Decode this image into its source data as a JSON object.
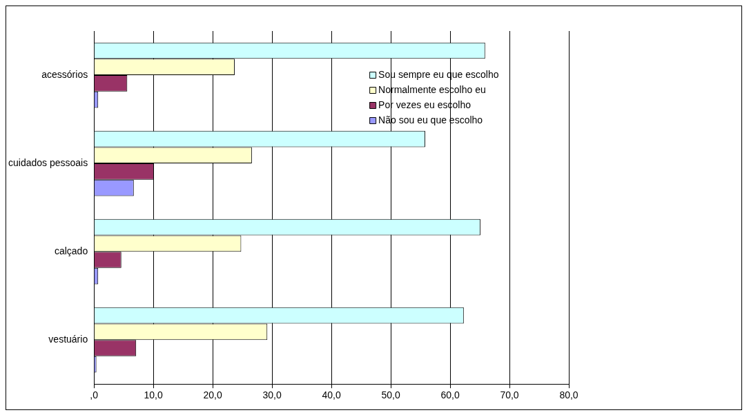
{
  "chart_data": {
    "type": "bar",
    "orientation": "horizontal",
    "categories": [
      "acessórios",
      "cuidados pessoais",
      "calçado",
      "vestuário"
    ],
    "series": [
      {
        "name": "Sou sempre eu que escolho",
        "color": "#ccffff",
        "values": [
          65.9,
          55.8,
          65.1,
          62.3
        ]
      },
      {
        "name": "Normalmente escolho eu",
        "color": "#ffffcc",
        "values": [
          23.7,
          26.6,
          24.8,
          29.2
        ]
      },
      {
        "name": "Por vezes eu escolho",
        "color": "#993366",
        "values": [
          5.6,
          10.1,
          4.6,
          7.1
        ]
      },
      {
        "name": "Não sou eu que escolho",
        "color": "#9999ff",
        "values": [
          0.7,
          6.7,
          0.7,
          0.4
        ]
      }
    ],
    "xlim": [
      0,
      80
    ],
    "xticks": [
      {
        "value": 0,
        "label": ",0"
      },
      {
        "value": 10,
        "label": "10,0"
      },
      {
        "value": 20,
        "label": "20,0"
      },
      {
        "value": 30,
        "label": "30,0"
      },
      {
        "value": 40,
        "label": "40,0"
      },
      {
        "value": 50,
        "label": "50,0"
      },
      {
        "value": 60,
        "label": "60,0"
      },
      {
        "value": 70,
        "label": "70,0"
      },
      {
        "value": 80,
        "label": "80,0"
      }
    ],
    "grid": "x",
    "legend": "top right"
  }
}
